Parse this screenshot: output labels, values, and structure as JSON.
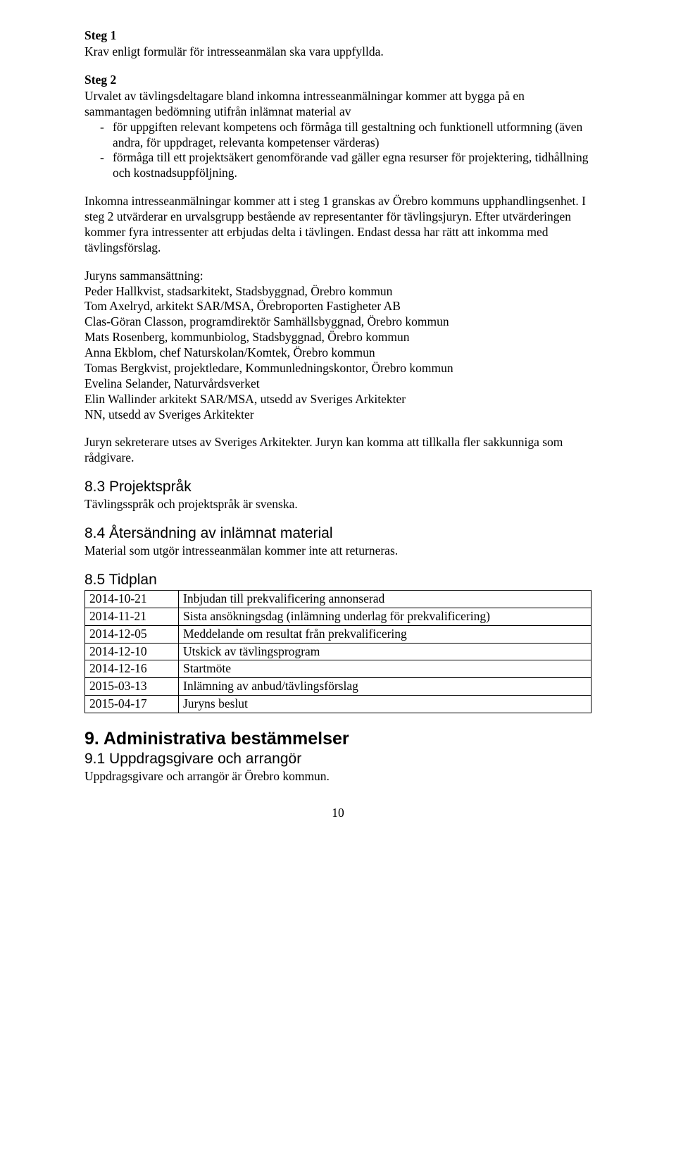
{
  "steg1": {
    "title": "Steg 1",
    "text": "Krav enligt formulär för intresseanmälan ska vara uppfyllda."
  },
  "steg2": {
    "title": "Steg 2",
    "intro": "Urvalet av tävlingsdeltagare bland inkomna intresseanmälningar kommer att bygga på en sammantagen bedömning utifrån inlämnat material av",
    "bullets": [
      "för uppgiften relevant kompetens och förmåga till gestaltning och funktionell utformning (även andra, för uppdraget, relevanta kompetenser värderas)",
      "förmåga till ett projektsäkert genomförande vad gäller egna resurser för projektering, tidhållning och kostnadsuppföljning."
    ]
  },
  "inkomna": "Inkomna intresseanmälningar kommer att i steg 1 granskas av  Örebro kommuns upphandlingsenhet. I steg 2 utvärderar en urvalsgrupp bestående av representanter för tävlingsjuryn. Efter utvärderingen kommer fyra intressenter att erbjudas delta i tävlingen. Endast dessa har rätt att inkomma med tävlingsförslag.",
  "jury": {
    "heading": "Juryns sammansättning:",
    "members": [
      "Peder Hallkvist, stadsarkitekt, Stadsbyggnad, Örebro kommun",
      "Tom Axelryd, arkitekt SAR/MSA, Örebroporten Fastigheter AB",
      "Clas-Göran Classon, programdirektör Samhällsbyggnad, Örebro kommun",
      "Mats Rosenberg, kommunbiolog, Stadsbyggnad, Örebro kommun",
      "Anna Ekblom, chef Naturskolan/Komtek, Örebro kommun",
      "Tomas Bergkvist, projektledare, Kommunledningskontor, Örebro kommun",
      "Evelina Selander, Naturvårdsverket",
      "Elin Wallinder arkitekt SAR/MSA, utsedd av Sveriges Arkitekter",
      "NN, utsedd av Sveriges Arkitekter"
    ]
  },
  "sekreterare": "Juryn sekreterare utses av Sveriges Arkitekter. Juryn kan komma att tillkalla fler sakkunniga som rådgivare.",
  "s83": {
    "heading": "8.3 Projektspråk",
    "text": "Tävlingsspråk och projektspråk är svenska."
  },
  "s84": {
    "heading": "8.4 Återsändning av inlämnat material",
    "text": "Material som utgör intresseanmälan kommer inte att returneras."
  },
  "s85": {
    "heading": "8.5 Tidplan",
    "rows": [
      {
        "date": "2014-10-21",
        "desc": "Inbjudan till prekvalificering annonserad"
      },
      {
        "date": "2014-11-21",
        "desc": "Sista ansökningsdag (inlämning underlag för prekvalificering)"
      },
      {
        "date": "2014-12-05",
        "desc": "Meddelande om resultat från prekvalificering"
      },
      {
        "date": "2014-12-10",
        "desc": "Utskick av tävlingsprogram"
      },
      {
        "date": "2014-12-16",
        "desc": "Startmöte"
      },
      {
        "date": "2015-03-13",
        "desc": "Inlämning av anbud/tävlingsförslag"
      },
      {
        "date": "2015-04-17",
        "desc": "Juryns beslut"
      }
    ]
  },
  "s9": {
    "heading": "9. Administrativa bestämmelser"
  },
  "s91": {
    "heading": "9.1 Uppdragsgivare och arrangör",
    "text": "Uppdragsgivare och arrangör är Örebro kommun."
  },
  "pageNumber": "10"
}
